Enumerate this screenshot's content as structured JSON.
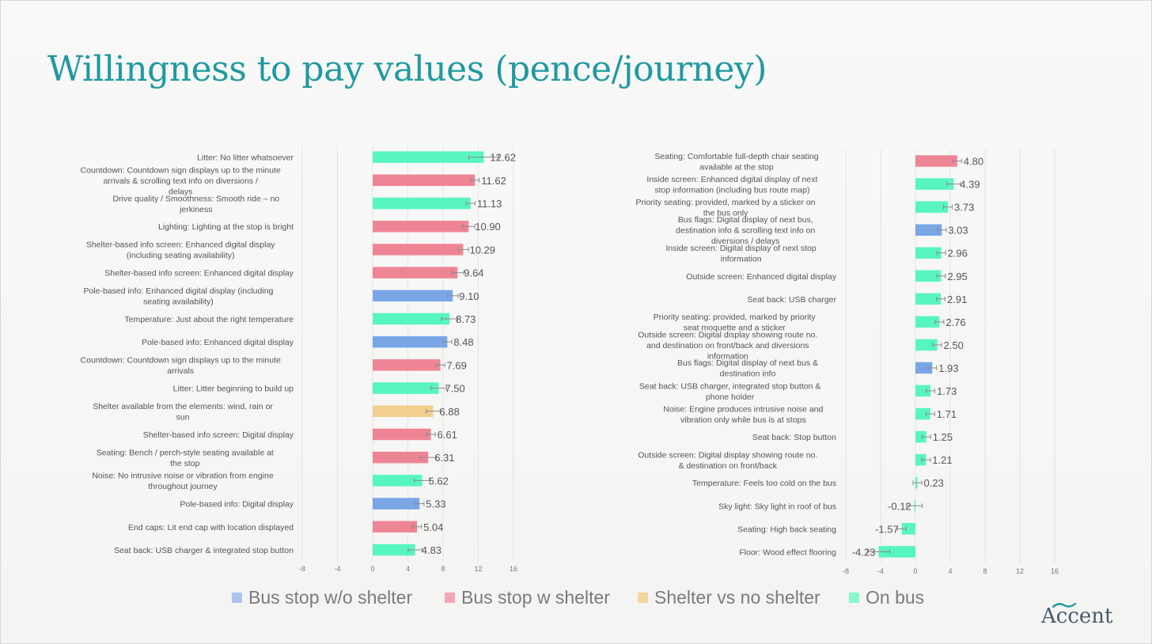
{
  "slide": {
    "title": "Willingness to pay values (pence/journey)",
    "logo_text": "Accent",
    "logo_icon": "wave-icon"
  },
  "colors": {
    "Bus stop w/o shelter": "#79a7e6",
    "Bus stop w shelter": "#ee8595",
    "Shelter vs no shelter": "#f2cf8e",
    "On bus": "#57f6be",
    "title": "#1f9aa0",
    "text": "#555555",
    "grid": "#e3e3e3"
  },
  "legend": [
    {
      "label": "Bus stop w/o shelter",
      "color": "#a9c6ef"
    },
    {
      "label": "Bus stop w shelter",
      "color": "#f3a7b3"
    },
    {
      "label": "Shelter vs no shelter",
      "color": "#f3d59f"
    },
    {
      "label": "On bus",
      "color": "#8af7cf"
    }
  ],
  "chart_data": [
    {
      "type": "bar",
      "orientation": "horizontal",
      "xlim": [
        -8,
        16
      ],
      "xticks": [
        "-8",
        "-4",
        "0",
        "4",
        "8",
        "12",
        "16"
      ],
      "grid": true,
      "error_bars": true,
      "categories": [
        "Litter: No litter whatsoever",
        "Countdown: Countdown sign displays up to the minute arrivals & scrolling text info on diversions / delays",
        "Drive quality / Smoothness: Smooth ride – no jerkiness",
        "Lighting: Lighting at the stop is bright",
        "Shelter-based info screen: Enhanced digital display (including seating availability)",
        "Shelter-based info screen: Enhanced digital display",
        "Pole-based info: Enhanced digital display (including seating availability)",
        "Temperature: Just about the right temperature",
        "Pole-based info: Enhanced digital display",
        "Countdown: Countdown sign displays up to the minute arrivals",
        "Litter: Litter beginning to build up",
        "Shelter available from the elements: wind, rain or sun",
        "Shelter-based info screen: Digital display",
        "Seating: Bench / perch-style seating available at the stop",
        "Noise: No intrusive noise or vibration from engine throughout journey",
        "Pole-based info: Digital display",
        "End caps: Lit end cap with location displayed",
        "Seat back: USB charger & integrated stop button"
      ],
      "values": [
        12.62,
        11.62,
        11.13,
        10.9,
        10.29,
        9.64,
        9.1,
        8.73,
        8.48,
        7.69,
        7.5,
        6.88,
        6.61,
        6.31,
        5.62,
        5.33,
        5.04,
        4.83
      ],
      "labels": [
        "12.62",
        "11.62",
        "11.13",
        "10.90",
        "10.29",
        "9.64",
        "9.10",
        "8.73",
        "8.48",
        "7.69",
        "7.50",
        "6.88",
        "6.61",
        "6.31",
        "5.62",
        "5.33",
        "5.04",
        "4.83"
      ],
      "groups": [
        "On bus",
        "Bus stop w shelter",
        "On bus",
        "Bus stop w shelter",
        "Bus stop w shelter",
        "Bus stop w shelter",
        "Bus stop w/o shelter",
        "On bus",
        "Bus stop w/o shelter",
        "Bus stop w shelter",
        "On bus",
        "Shelter vs no shelter",
        "Bus stop w shelter",
        "Bus stop w shelter",
        "On bus",
        "Bus stop w/o shelter",
        "Bus stop w shelter",
        "On bus"
      ],
      "errors": [
        1.7,
        0.5,
        0.5,
        0.7,
        0.6,
        0.7,
        0.6,
        0.9,
        0.5,
        0.5,
        0.9,
        0.8,
        0.5,
        0.9,
        0.9,
        0.5,
        0.5,
        0.8
      ]
    },
    {
      "type": "bar",
      "orientation": "horizontal",
      "xlim": [
        -8,
        16
      ],
      "xticks": [
        "-8",
        "-4",
        "0",
        "4",
        "8",
        "12",
        "16"
      ],
      "grid": true,
      "error_bars": true,
      "categories": [
        "Seating: Comfortable full-depth chair seating available at the stop",
        "Inside screen: Enhanced digital display of next stop information (including bus route map)",
        "Priority seating: provided, marked by a sticker on the bus only",
        "Bus flags: Digital display of next bus, destination info & scrolling text info on diversions / delays",
        "Inside screen: Digital display of next stop information",
        "Outside screen: Enhanced digital display",
        "Seat back: USB charger",
        "Priority seating: provided, marked by priority seat moquette and a sticker",
        "Outside screen: Digital display showing route no. and destination on front/back and diversions information",
        "Bus flags: Digital display of next bus & destination info",
        "Seat back: USB charger, integrated stop button & phone holder",
        "Noise: Engine produces intrusive noise and vibration only while bus is at stops",
        "Seat back: Stop button",
        "Outside screen: Digital display showing route no. & destination on front/back",
        "Temperature: Feels too cold on the bus",
        "Sky light: Sky light in roof of bus",
        "Seating: High back seating",
        "Floor: Wood effect flooring"
      ],
      "values": [
        4.8,
        4.39,
        3.73,
        3.03,
        2.96,
        2.95,
        2.91,
        2.76,
        2.5,
        1.93,
        1.73,
        1.71,
        1.25,
        1.21,
        0.23,
        -0.12,
        -1.57,
        -4.23
      ],
      "labels": [
        "4.80",
        "4.39",
        "3.73",
        "3.03",
        "2.96",
        "2.95",
        "2.91",
        "2.76",
        "2.50",
        "1.93",
        "1.73",
        "1.71",
        "1.25",
        "1.21",
        "0.23",
        "-0.12",
        "-1.57",
        "-4.23"
      ],
      "groups": [
        "Bus stop w shelter",
        "On bus",
        "On bus",
        "Bus stop w/o shelter",
        "On bus",
        "On bus",
        "On bus",
        "On bus",
        "On bus",
        "Bus stop w/o shelter",
        "On bus",
        "On bus",
        "On bus",
        "On bus",
        "On bus",
        "On bus",
        "On bus",
        "On bus"
      ],
      "errors": [
        0.5,
        0.8,
        0.5,
        0.5,
        0.5,
        0.5,
        0.5,
        0.5,
        0.5,
        0.5,
        0.5,
        0.5,
        0.5,
        0.5,
        0.5,
        0.9,
        0.5,
        1.3
      ]
    }
  ]
}
